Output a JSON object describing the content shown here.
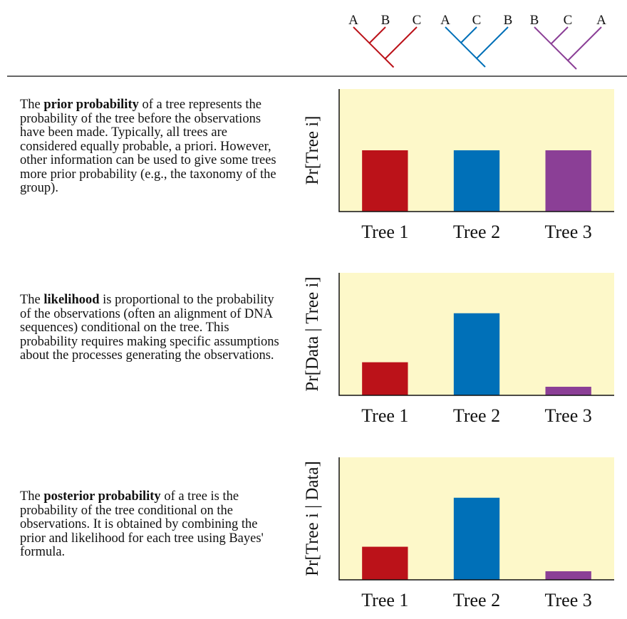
{
  "trees": [
    {
      "leaves": [
        "A",
        "B",
        "C"
      ],
      "color": "#bb1219"
    },
    {
      "leaves": [
        "A",
        "C",
        "B"
      ],
      "color": "#0070b8"
    },
    {
      "leaves": [
        "B",
        "C",
        "A"
      ],
      "color": "#8b3f96"
    }
  ],
  "descriptions": [
    {
      "before": "The ",
      "term": "prior probability",
      "after": " of a tree represents the probability of the tree before the observations have been made. Typically, all trees are considered equally probable, a priori. However, other information can be used to give some trees more prior probability (e.g., the taxonomy of the group)."
    },
    {
      "before": "The ",
      "term": "likelihood",
      "after": " is proportional to the probability of the observations (often an alignment of DNA sequences) conditional on the tree. This probability requires making specific assumptions about the processes generating the observations."
    },
    {
      "before": "The ",
      "term": "posterior probability",
      "after": " of a tree is the probability of the tree conditional on the observations. It is obtained by combining the prior and likelihood for each tree using Bayes' formula."
    }
  ],
  "chart_data": [
    {
      "type": "bar",
      "ylabel": "Pr[Tree i]",
      "categories": [
        "Tree 1",
        "Tree 2",
        "Tree 3"
      ],
      "values": [
        0.5,
        0.5,
        0.5
      ],
      "colors": [
        "#bb1219",
        "#0070b8",
        "#8b3f96"
      ],
      "ylim": [
        0,
        1
      ],
      "background": "#fdf8c9"
    },
    {
      "type": "bar",
      "ylabel": "Pr[Data | Tree i]",
      "categories": [
        "Tree 1",
        "Tree 2",
        "Tree 3"
      ],
      "values": [
        0.27,
        0.67,
        0.07
      ],
      "colors": [
        "#bb1219",
        "#0070b8",
        "#8b3f96"
      ],
      "ylim": [
        0,
        1
      ],
      "background": "#fdf8c9"
    },
    {
      "type": "bar",
      "ylabel": "Pr[Tree i | Data]",
      "categories": [
        "Tree 1",
        "Tree 2",
        "Tree 3"
      ],
      "values": [
        0.27,
        0.67,
        0.07
      ],
      "colors": [
        "#bb1219",
        "#0070b8",
        "#8b3f96"
      ],
      "ylim": [
        0,
        1
      ],
      "background": "#fdf8c9"
    }
  ]
}
